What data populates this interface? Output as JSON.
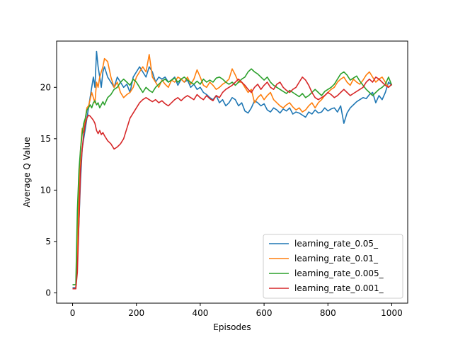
{
  "chart_data": {
    "type": "line",
    "title": "",
    "xlabel": "Episodes",
    "ylabel": "Average Q Value",
    "xlim": [
      -50,
      1050
    ],
    "ylim": [
      -1,
      24.5
    ],
    "xticks": [
      0,
      200,
      400,
      600,
      800,
      1000
    ],
    "yticks": [
      0,
      5,
      10,
      15,
      20
    ],
    "grid": false,
    "legend_position": "lower-right",
    "series": [
      {
        "name": "learning_rate_0.05_",
        "color": "#1f77b4",
        "x": [
          0,
          10,
          15,
          20,
          25,
          30,
          35,
          40,
          45,
          50,
          55,
          60,
          65,
          70,
          75,
          80,
          85,
          90,
          95,
          100,
          110,
          120,
          130,
          140,
          150,
          160,
          170,
          180,
          190,
          200,
          210,
          220,
          230,
          240,
          250,
          260,
          270,
          280,
          290,
          300,
          310,
          320,
          330,
          340,
          350,
          360,
          370,
          380,
          390,
          400,
          410,
          420,
          430,
          440,
          450,
          460,
          470,
          480,
          490,
          500,
          510,
          520,
          530,
          540,
          550,
          560,
          570,
          580,
          590,
          600,
          610,
          620,
          630,
          640,
          650,
          660,
          670,
          680,
          690,
          700,
          710,
          720,
          730,
          740,
          750,
          760,
          770,
          780,
          790,
          800,
          810,
          820,
          830,
          840,
          850,
          860,
          870,
          880,
          890,
          900,
          910,
          920,
          930,
          940,
          950,
          960,
          970,
          980,
          990,
          1000
        ],
        "y": [
          0.5,
          0.5,
          3,
          7,
          11,
          14,
          15,
          16,
          17,
          18,
          19,
          20,
          21,
          20,
          23.5,
          22,
          21,
          20,
          21.5,
          22,
          21,
          20.5,
          20,
          21,
          20.5,
          20,
          20.3,
          19.5,
          21,
          21.5,
          22,
          21.5,
          21,
          22,
          21.5,
          20.5,
          21,
          20.8,
          21,
          20.5,
          20.7,
          21,
          20.2,
          20.8,
          20.5,
          20.7,
          20,
          20.3,
          19.8,
          20,
          19.5,
          19.3,
          19,
          18.8,
          19.2,
          18.5,
          18.8,
          18.2,
          18.5,
          19,
          18.8,
          18.2,
          18.5,
          17.7,
          17.5,
          18,
          18.7,
          18.5,
          18.2,
          18.4,
          17.8,
          17.6,
          18,
          17.8,
          17.5,
          17.9,
          17.7,
          18,
          17.4,
          17.6,
          17.5,
          17.3,
          17.1,
          17.6,
          17.4,
          17.8,
          17.5,
          17.6,
          18,
          17.7,
          17.9,
          18,
          17.6,
          18.2,
          16.5,
          17.5,
          18,
          18.3,
          18.6,
          18.8,
          19,
          18.9,
          19.3,
          19.5,
          18.5,
          19.2,
          18.8,
          19.5,
          20.5,
          20.2
        ]
      },
      {
        "name": "learning_rate_0.01_",
        "color": "#ff7f0e",
        "x": [
          0,
          10,
          15,
          20,
          25,
          30,
          35,
          40,
          45,
          50,
          55,
          60,
          65,
          70,
          75,
          80,
          85,
          90,
          95,
          100,
          110,
          120,
          130,
          140,
          150,
          160,
          170,
          180,
          190,
          200,
          210,
          220,
          230,
          240,
          250,
          260,
          270,
          280,
          290,
          300,
          310,
          320,
          330,
          340,
          350,
          360,
          370,
          380,
          390,
          400,
          410,
          420,
          430,
          440,
          450,
          460,
          470,
          480,
          490,
          500,
          510,
          520,
          530,
          540,
          550,
          560,
          570,
          580,
          590,
          600,
          610,
          620,
          630,
          640,
          650,
          660,
          670,
          680,
          690,
          700,
          710,
          720,
          730,
          740,
          750,
          760,
          770,
          780,
          790,
          800,
          810,
          820,
          830,
          840,
          850,
          860,
          870,
          880,
          890,
          900,
          910,
          920,
          930,
          940,
          950,
          960,
          970,
          980,
          990,
          1000
        ],
        "y": [
          0.4,
          0.4,
          5,
          10,
          14,
          16,
          15.5,
          17,
          18,
          18.2,
          18.8,
          19.5,
          19,
          18.5,
          20.5,
          20,
          21,
          21.5,
          22,
          22.8,
          22.5,
          21,
          20,
          20.5,
          19.5,
          19,
          19.3,
          19.5,
          20,
          21,
          21.5,
          22,
          21.5,
          23.2,
          21,
          20.5,
          20,
          20.7,
          20.3,
          20,
          20.7,
          20.5,
          21,
          20.8,
          20.5,
          21,
          20.3,
          20.8,
          21.7,
          21,
          20.2,
          20,
          20.5,
          20.2,
          19.8,
          20,
          20.3,
          20.5,
          20.8,
          21.8,
          21.2,
          20.5,
          20.5,
          20,
          19.5,
          19.8,
          18.5,
          19,
          19.3,
          18.8,
          19.2,
          19.5,
          18.8,
          18.5,
          18.2,
          18,
          18.3,
          18.5,
          18.1,
          17.8,
          18,
          17.6,
          17.8,
          18.2,
          18.5,
          18,
          18.5,
          18.8,
          19.2,
          19.5,
          19.8,
          20,
          20.5,
          20.8,
          21,
          20.5,
          20.2,
          20.8,
          20.5,
          20.3,
          20.7,
          21.2,
          21.5,
          21,
          20.5,
          20.8,
          21,
          20.5,
          20,
          20.3
        ]
      },
      {
        "name": "learning_rate_0.005_",
        "color": "#2ca02c",
        "x": [
          0,
          10,
          15,
          20,
          25,
          30,
          35,
          40,
          45,
          50,
          55,
          60,
          65,
          70,
          75,
          80,
          85,
          90,
          95,
          100,
          110,
          120,
          130,
          140,
          150,
          160,
          170,
          180,
          190,
          200,
          210,
          220,
          230,
          240,
          250,
          260,
          270,
          280,
          290,
          300,
          310,
          320,
          330,
          340,
          350,
          360,
          370,
          380,
          390,
          400,
          410,
          420,
          430,
          440,
          450,
          460,
          470,
          480,
          490,
          500,
          510,
          520,
          530,
          540,
          550,
          560,
          570,
          580,
          590,
          600,
          610,
          620,
          630,
          640,
          650,
          660,
          670,
          680,
          690,
          700,
          710,
          720,
          730,
          740,
          750,
          760,
          770,
          780,
          790,
          800,
          810,
          820,
          830,
          840,
          850,
          860,
          870,
          880,
          890,
          900,
          910,
          920,
          930,
          940,
          950,
          960,
          970,
          980,
          990,
          1000
        ],
        "y": [
          0.8,
          0.8,
          8,
          12,
          14,
          15.5,
          16.5,
          17,
          17.8,
          18,
          18.3,
          18,
          18.5,
          18.7,
          18.3,
          18.5,
          18,
          18.3,
          18.6,
          18.3,
          19,
          19.3,
          19.8,
          20,
          20.5,
          20.8,
          20.5,
          20.2,
          20.8,
          20.5,
          20,
          19.5,
          20,
          19.7,
          19.5,
          20,
          20.3,
          20.6,
          20.8,
          20.5,
          20.7,
          20.9,
          20.5,
          20.8,
          21,
          20.7,
          20.5,
          20.3,
          20.6,
          20.3,
          20.8,
          20.5,
          20.7,
          20.5,
          20.9,
          21,
          20.8,
          20.5,
          20.3,
          20.5,
          20.2,
          20.5,
          20.8,
          21,
          21.5,
          21.8,
          21.5,
          21.3,
          21,
          20.7,
          21,
          20.5,
          20.2,
          20,
          19.8,
          19.6,
          19.4,
          19.7,
          19.5,
          19.3,
          19.1,
          19.4,
          19,
          19.2,
          19.5,
          19.8,
          19.5,
          19.2,
          19.6,
          19.8,
          20,
          20.3,
          20.8,
          21.3,
          21.5,
          21.2,
          20.7,
          20.9,
          21.1,
          20.6,
          20.2,
          19.8,
          19.5,
          19.2,
          19.5,
          19.8,
          20,
          20.3,
          21,
          20.2
        ]
      },
      {
        "name": "learning_rate_0.001_",
        "color": "#d62728",
        "x": [
          0,
          10,
          15,
          20,
          25,
          30,
          35,
          40,
          45,
          50,
          55,
          60,
          65,
          70,
          75,
          80,
          85,
          90,
          95,
          100,
          110,
          120,
          130,
          140,
          150,
          160,
          170,
          180,
          190,
          200,
          210,
          220,
          230,
          240,
          250,
          260,
          270,
          280,
          290,
          300,
          310,
          320,
          330,
          340,
          350,
          360,
          370,
          380,
          390,
          400,
          410,
          420,
          430,
          440,
          450,
          460,
          470,
          480,
          490,
          500,
          510,
          520,
          530,
          540,
          550,
          560,
          570,
          580,
          590,
          600,
          610,
          620,
          630,
          640,
          650,
          660,
          670,
          680,
          690,
          700,
          710,
          720,
          730,
          740,
          750,
          760,
          770,
          780,
          790,
          800,
          810,
          820,
          830,
          840,
          850,
          860,
          870,
          880,
          890,
          900,
          910,
          920,
          930,
          940,
          950,
          960,
          970,
          980,
          990,
          1000
        ],
        "y": [
          0.4,
          0.4,
          2,
          7,
          12,
          14,
          15.5,
          16.5,
          17,
          17.3,
          17.2,
          17,
          16.8,
          16.5,
          15.8,
          15.5,
          15.8,
          15.4,
          15.6,
          15.3,
          14.8,
          14.5,
          14,
          14.2,
          14.5,
          15,
          16,
          17,
          17.5,
          18,
          18.5,
          18.8,
          19,
          18.8,
          18.6,
          18.8,
          18.5,
          18.7,
          18.4,
          18.2,
          18.5,
          18.8,
          19,
          18.7,
          19,
          19.2,
          19,
          18.8,
          19.3,
          19,
          18.8,
          19.2,
          18.9,
          18.7,
          19.2,
          19,
          19.5,
          19.8,
          20,
          20.2,
          20.5,
          20.8,
          20.5,
          20.2,
          19.8,
          19.5,
          20,
          20.3,
          19.8,
          20.2,
          20.5,
          20,
          19.8,
          20.3,
          20.5,
          20,
          19.7,
          19.5,
          19.8,
          20,
          20.5,
          21,
          20.7,
          20.2,
          19.5,
          19,
          18.8,
          19,
          19.2,
          19.5,
          19.3,
          19,
          19.2,
          19.5,
          19.8,
          19.5,
          19.2,
          19.4,
          19.6,
          19.8,
          20,
          20.5,
          20.8,
          20.5,
          21,
          20.8,
          20.5,
          20.2,
          20,
          20.3
        ]
      }
    ]
  }
}
